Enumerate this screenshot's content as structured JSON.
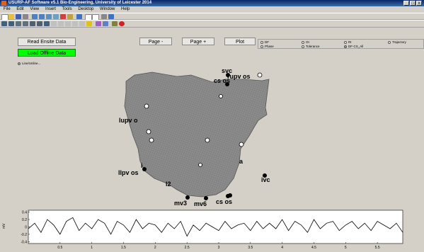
{
  "window": {
    "title": "USURP-AF Software v5.1   Bio-Engineering, University of Leicester 2014"
  },
  "menu": [
    "File",
    "Edit",
    "View",
    "Insert",
    "Tools",
    "Desktop",
    "Window",
    "Help"
  ],
  "buttons": {
    "read_ensite": "Read Ensite Data",
    "load_offline": "Load Offline Data",
    "page_minus": "Page -",
    "page_plus": "Page +",
    "plot": "Plot"
  },
  "radio_left": {
    "label": "Line/Unline...",
    "selected": true
  },
  "plot_options": [
    {
      "label": "DF",
      "selected": false
    },
    {
      "label": "OI",
      "selected": false
    },
    {
      "label": "RI",
      "selected": false
    },
    {
      "label": "Trajectory",
      "selected": false
    },
    {
      "label": "Phase",
      "selected": false
    },
    {
      "label": "Tolerance",
      "selected": false
    },
    {
      "label": "DF-CS_All",
      "selected": true
    }
  ],
  "map_labels": {
    "svc": "svc",
    "rupv": "rupv os",
    "cs": "cs os",
    "lupv": "lupv o",
    "i": "i",
    "llpv": "llpv os",
    "a": "a",
    "l2": "l2",
    "ivc": "ivc",
    "mv3": "mv3",
    "mv6": "mv6",
    "csos": "cs os"
  },
  "chart_data": {
    "type": "line",
    "ylabel": "mV",
    "xlim": [
      0,
      5.9
    ],
    "ylim": [
      -0.45,
      0.45
    ],
    "xticks": [
      "0.5",
      "1",
      "1.5",
      "2",
      "2.5",
      "3",
      "3.5",
      "4",
      "4.5",
      "5",
      "5.5"
    ],
    "yticks": [
      "0.4",
      "0.2",
      "0",
      "-0.2",
      "-0.4"
    ],
    "x": [
      0,
      0.1,
      0.2,
      0.3,
      0.4,
      0.5,
      0.6,
      0.7,
      0.8,
      0.9,
      1.0,
      1.1,
      1.2,
      1.3,
      1.4,
      1.5,
      1.6,
      1.7,
      1.8,
      1.9,
      2.0,
      2.1,
      2.2,
      2.3,
      2.4,
      2.5,
      2.6,
      2.7,
      2.8,
      2.9,
      3.0,
      3.1,
      3.2,
      3.3,
      3.4,
      3.5,
      3.6,
      3.7,
      3.8,
      3.9,
      4.0,
      4.1,
      4.2,
      4.3,
      4.4,
      4.5,
      4.6,
      4.7,
      4.8,
      4.9,
      5.0,
      5.1,
      5.2,
      5.3,
      5.4,
      5.5,
      5.6,
      5.7,
      5.8,
      5.9
    ],
    "y": [
      -0.05,
      0.1,
      -0.15,
      0.2,
      0.05,
      -0.2,
      0.15,
      0.25,
      -0.1,
      0.1,
      -0.05,
      0.2,
      0.1,
      -0.2,
      0.15,
      0.05,
      -0.15,
      0.2,
      -0.05,
      0.1,
      0.05,
      -0.15,
      0.1,
      -0.05,
      0.15,
      -0.25,
      0.05,
      -0.1,
      0.1,
      0.0,
      -0.1,
      0.15,
      -0.05,
      0.05,
      0.1,
      -0.1,
      0.15,
      -0.05,
      0.1,
      -0.05,
      0.2,
      -0.1,
      0.15,
      0.05,
      -0.15,
      0.2,
      -0.05,
      0.1,
      0.15,
      -0.1,
      0.05,
      0.15,
      -0.05,
      0.1,
      -0.1,
      0.15,
      0.05,
      -0.05,
      0.1,
      -0.15
    ]
  }
}
